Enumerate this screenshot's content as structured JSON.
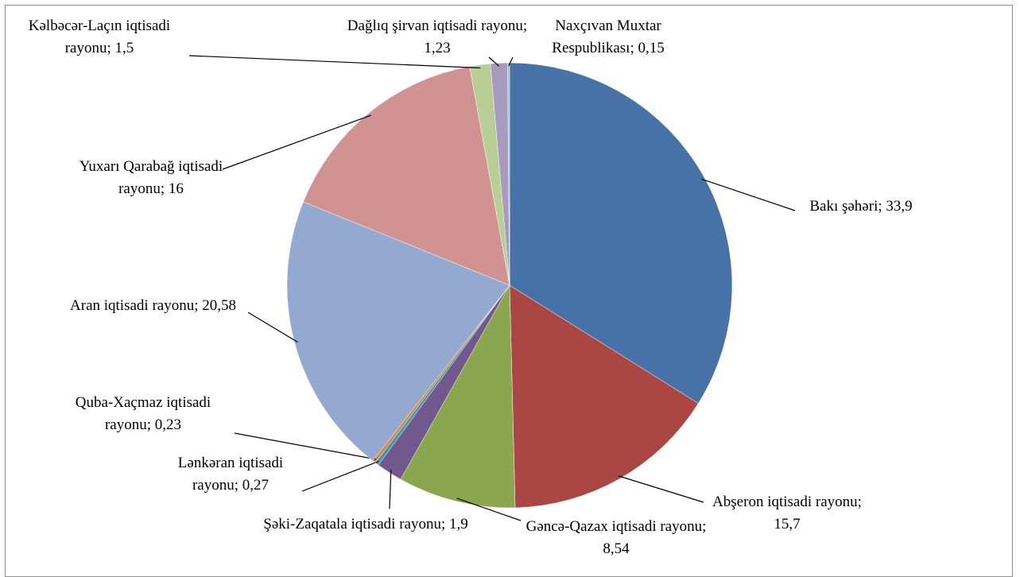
{
  "chart_data": {
    "type": "pie",
    "categories": [
      "Bakı şəhəri",
      "Abşeron iqtisadi rayonu",
      "Gəncə-Qazax iqtisadi rayonu",
      "Şəki-Zaqatala iqtisadi rayonu",
      "Lənkəran iqtisadi rayonu",
      "Quba-Xaçmaz iqtisadi rayonu",
      "Aran iqtisadi rayonu",
      "Yuxarı Qarabağ iqtisadi rayonu",
      "Kəlbəcər-Laçın iqtisadi rayonu",
      "Dağlıq şirvan iqtisadi rayonu",
      "Naxçıvan Muxtar Respublikası"
    ],
    "values": [
      33.9,
      15.7,
      8.54,
      1.9,
      0.27,
      0.23,
      20.58,
      16,
      1.5,
      1.23,
      0.15
    ],
    "value_labels": [
      "33,9",
      "15,7",
      "8,54",
      "1,9",
      "0,27",
      "0,23",
      "20,58",
      "16",
      "1,5",
      "1,23",
      "0,15"
    ],
    "label_separator": "; ",
    "colors": [
      "#4672a8",
      "#aa4744",
      "#8aa64e",
      "#71598e",
      "#4198af",
      "#db843d",
      "#93a9cf",
      "#d19392",
      "#b9cd96",
      "#a99bbd",
      "#92c3d5"
    ]
  }
}
